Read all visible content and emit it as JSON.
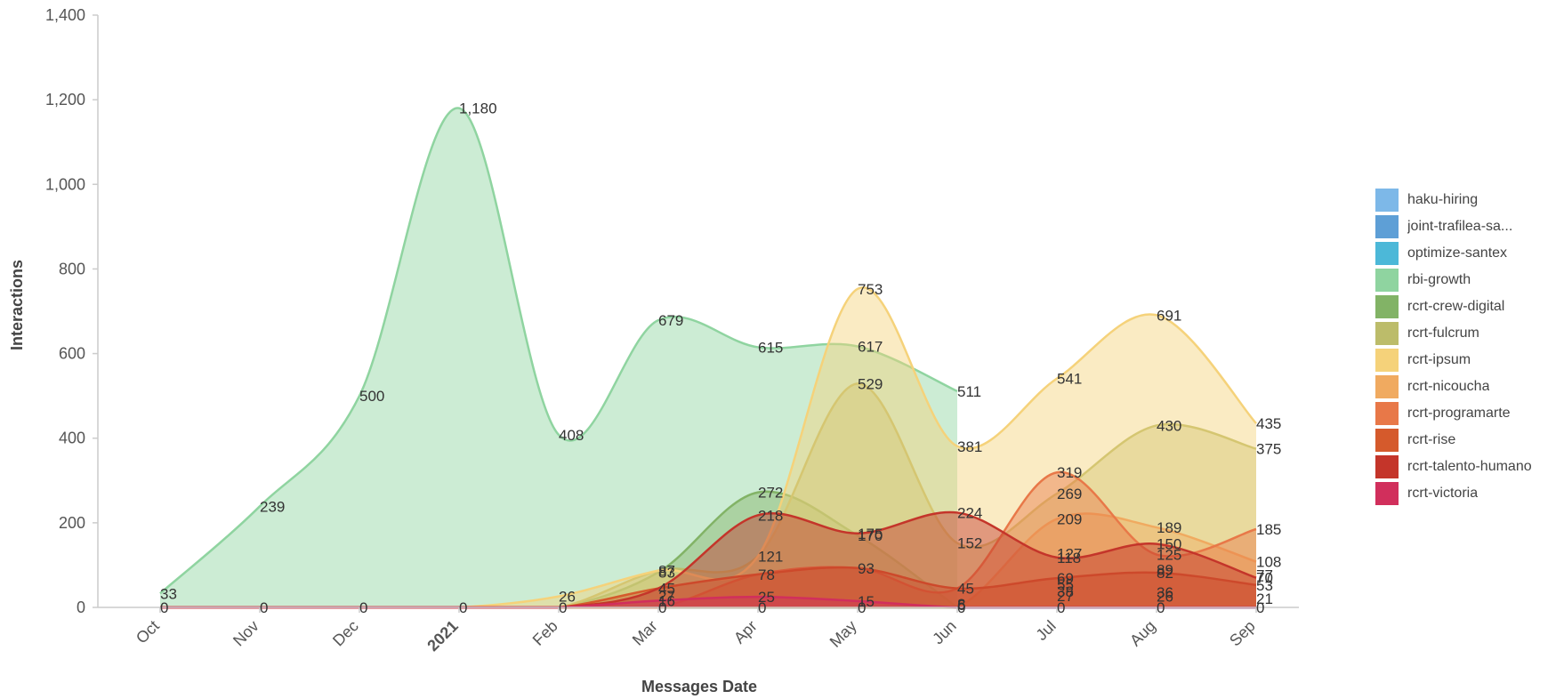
{
  "chart_data": {
    "type": "area",
    "title": "",
    "xlabel": "Messages Date",
    "ylabel": "Interactions",
    "ylim": [
      0,
      1400
    ],
    "yticks": [
      "0",
      "200",
      "400",
      "600",
      "800",
      "1,000",
      "1,200",
      "1,400"
    ],
    "categories": [
      "Oct",
      "Nov",
      "Dec",
      "2021",
      "Feb",
      "Mar",
      "Apr",
      "May",
      "Jun",
      "Jul",
      "Aug",
      "Sep"
    ],
    "bold_categories": [
      "2021"
    ],
    "grid": false,
    "legend_position": "right",
    "series": [
      {
        "name": "haku-hiring",
        "color": "#7db8e8",
        "values": [
          0,
          0,
          0,
          0,
          0,
          0,
          0,
          0,
          0,
          0,
          0,
          0
        ]
      },
      {
        "name": "joint-trafilea-sa...",
        "color": "#5e9fd6",
        "values": [
          0,
          0,
          0,
          0,
          0,
          0,
          0,
          0,
          0,
          0,
          0,
          0
        ]
      },
      {
        "name": "optimize-santex",
        "color": "#4cb8d8",
        "values": [
          0,
          0,
          0,
          0,
          0,
          0,
          0,
          0,
          0,
          0,
          0,
          0
        ]
      },
      {
        "name": "rbi-growth",
        "color": "#8fd4a0",
        "values": [
          33,
          239,
          500,
          1180,
          408,
          679,
          615,
          617,
          511,
          null,
          null,
          null
        ]
      },
      {
        "name": "rcrt-crew-digital",
        "color": "#82b366",
        "values": [
          0,
          0,
          0,
          0,
          0,
          83,
          272,
          170,
          0,
          null,
          null,
          null
        ]
      },
      {
        "name": "rcrt-fulcrum",
        "color": "#bcbc6a",
        "values": [
          0,
          0,
          0,
          0,
          0,
          87,
          121,
          529,
          152,
          269,
          430,
          375
        ]
      },
      {
        "name": "rcrt-ipsum",
        "color": "#f5d27a",
        "values": [
          0,
          0,
          0,
          0,
          26,
          87,
          121,
          753,
          381,
          541,
          691,
          435
        ]
      },
      {
        "name": "rcrt-nicoucha",
        "color": "#f0aa60",
        "values": [
          0,
          0,
          0,
          0,
          0,
          0,
          0,
          0,
          0,
          209,
          189,
          108
        ]
      },
      {
        "name": "rcrt-programarte",
        "color": "#e87848",
        "values": [
          0,
          0,
          0,
          0,
          0,
          0,
          78,
          93,
          45,
          319,
          125,
          185
        ]
      },
      {
        "name": "rcrt-rise",
        "color": "#d55a2c",
        "values": [
          0,
          0,
          0,
          0,
          0,
          45,
          78,
          93,
          45,
          69,
          82,
          53
        ]
      },
      {
        "name": "rcrt-talento-humano",
        "color": "#c4352a",
        "values": [
          0,
          0,
          0,
          0,
          0,
          45,
          218,
          175,
          224,
          118,
          150,
          70
        ]
      },
      {
        "name": "rcrt-victoria",
        "color": "#d12f5c",
        "values": [
          0,
          0,
          0,
          0,
          0,
          16,
          25,
          15,
          0,
          0,
          0,
          0
        ]
      }
    ],
    "point_labels": [
      {
        "x": "Oct",
        "y": 33,
        "text": "33"
      },
      {
        "x": "Nov",
        "y": 239,
        "text": "239"
      },
      {
        "x": "Dec",
        "y": 500,
        "text": "500"
      },
      {
        "x": "2021",
        "y": 1180,
        "text": "1,180"
      },
      {
        "x": "Feb",
        "y": 408,
        "text": "408"
      },
      {
        "x": "Mar",
        "y": 679,
        "text": "679"
      },
      {
        "x": "Apr",
        "y": 615,
        "text": "615"
      },
      {
        "x": "May",
        "y": 617,
        "text": "617"
      },
      {
        "x": "Jun",
        "y": 511,
        "text": "511"
      },
      {
        "x": "May",
        "y": 753,
        "text": "753"
      },
      {
        "x": "Jul",
        "y": 541,
        "text": "541"
      },
      {
        "x": "Aug",
        "y": 691,
        "text": "691"
      },
      {
        "x": "Sep",
        "y": 435,
        "text": "435"
      },
      {
        "x": "May",
        "y": 529,
        "text": "529"
      },
      {
        "x": "Aug",
        "y": 430,
        "text": "430"
      },
      {
        "x": "Sep",
        "y": 375,
        "text": "375"
      },
      {
        "x": "Jun",
        "y": 381,
        "text": "381"
      },
      {
        "x": "Jul",
        "y": 319,
        "text": "319"
      },
      {
        "x": "Jul",
        "y": 269,
        "text": "269"
      },
      {
        "x": "Apr",
        "y": 272,
        "text": "272"
      },
      {
        "x": "Apr",
        "y": 218,
        "text": "218"
      },
      {
        "x": "Jun",
        "y": 224,
        "text": "224"
      },
      {
        "x": "Jul",
        "y": 209,
        "text": "209"
      },
      {
        "x": "Aug",
        "y": 189,
        "text": "189"
      },
      {
        "x": "Sep",
        "y": 185,
        "text": "185"
      },
      {
        "x": "May",
        "y": 175,
        "text": "175"
      },
      {
        "x": "May",
        "y": 170,
        "text": "170"
      },
      {
        "x": "Jun",
        "y": 152,
        "text": "152"
      },
      {
        "x": "Aug",
        "y": 150,
        "text": "150"
      },
      {
        "x": "Jul",
        "y": 127,
        "text": "127"
      },
      {
        "x": "Aug",
        "y": 125,
        "text": "125"
      },
      {
        "x": "Apr",
        "y": 121,
        "text": "121"
      },
      {
        "x": "Jul",
        "y": 118,
        "text": "118"
      },
      {
        "x": "Sep",
        "y": 108,
        "text": "108"
      },
      {
        "x": "Mar",
        "y": 87,
        "text": "87"
      },
      {
        "x": "Mar",
        "y": 83,
        "text": "83"
      },
      {
        "x": "May",
        "y": 93,
        "text": "93"
      },
      {
        "x": "Aug",
        "y": 89,
        "text": "89"
      },
      {
        "x": "Aug",
        "y": 82,
        "text": "82"
      },
      {
        "x": "Apr",
        "y": 78,
        "text": "78"
      },
      {
        "x": "Sep",
        "y": 77,
        "text": "77"
      },
      {
        "x": "Sep",
        "y": 70,
        "text": "70"
      },
      {
        "x": "Jul",
        "y": 69,
        "text": "69"
      },
      {
        "x": "Jul",
        "y": 55,
        "text": "55"
      },
      {
        "x": "Sep",
        "y": 53,
        "text": "53"
      },
      {
        "x": "Mar",
        "y": 45,
        "text": "45"
      },
      {
        "x": "Jun",
        "y": 45,
        "text": "45"
      },
      {
        "x": "Jul",
        "y": 38,
        "text": "38"
      },
      {
        "x": "Aug",
        "y": 36,
        "text": "36"
      },
      {
        "x": "Mar",
        "y": 27,
        "text": "27"
      },
      {
        "x": "Jul",
        "y": 27,
        "text": "27"
      },
      {
        "x": "Aug",
        "y": 26,
        "text": "26"
      },
      {
        "x": "Feb",
        "y": 26,
        "text": "26"
      },
      {
        "x": "Apr",
        "y": 25,
        "text": "25"
      },
      {
        "x": "Sep",
        "y": 21,
        "text": "21"
      },
      {
        "x": "Mar",
        "y": 16,
        "text": "16"
      },
      {
        "x": "May",
        "y": 15,
        "text": "15"
      },
      {
        "x": "Jun",
        "y": 8,
        "text": "8"
      },
      {
        "x": "Jun",
        "y": 6,
        "text": "6"
      },
      {
        "x": "Sep",
        "y": 0,
        "text": "0"
      },
      {
        "x": "Oct",
        "y": 0,
        "text": "0"
      },
      {
        "x": "Nov",
        "y": 0,
        "text": "0"
      },
      {
        "x": "Dec",
        "y": 0,
        "text": "0"
      },
      {
        "x": "2021",
        "y": 0,
        "text": "0"
      },
      {
        "x": "Feb",
        "y": 0,
        "text": "0"
      },
      {
        "x": "Mar",
        "y": 0,
        "text": "0"
      },
      {
        "x": "Apr",
        "y": 0,
        "text": "0"
      },
      {
        "x": "May",
        "y": 0,
        "text": "0"
      },
      {
        "x": "Jun",
        "y": 0,
        "text": "0"
      },
      {
        "x": "Jul",
        "y": 0,
        "text": "0"
      },
      {
        "x": "Aug",
        "y": 0,
        "text": "0"
      }
    ]
  }
}
